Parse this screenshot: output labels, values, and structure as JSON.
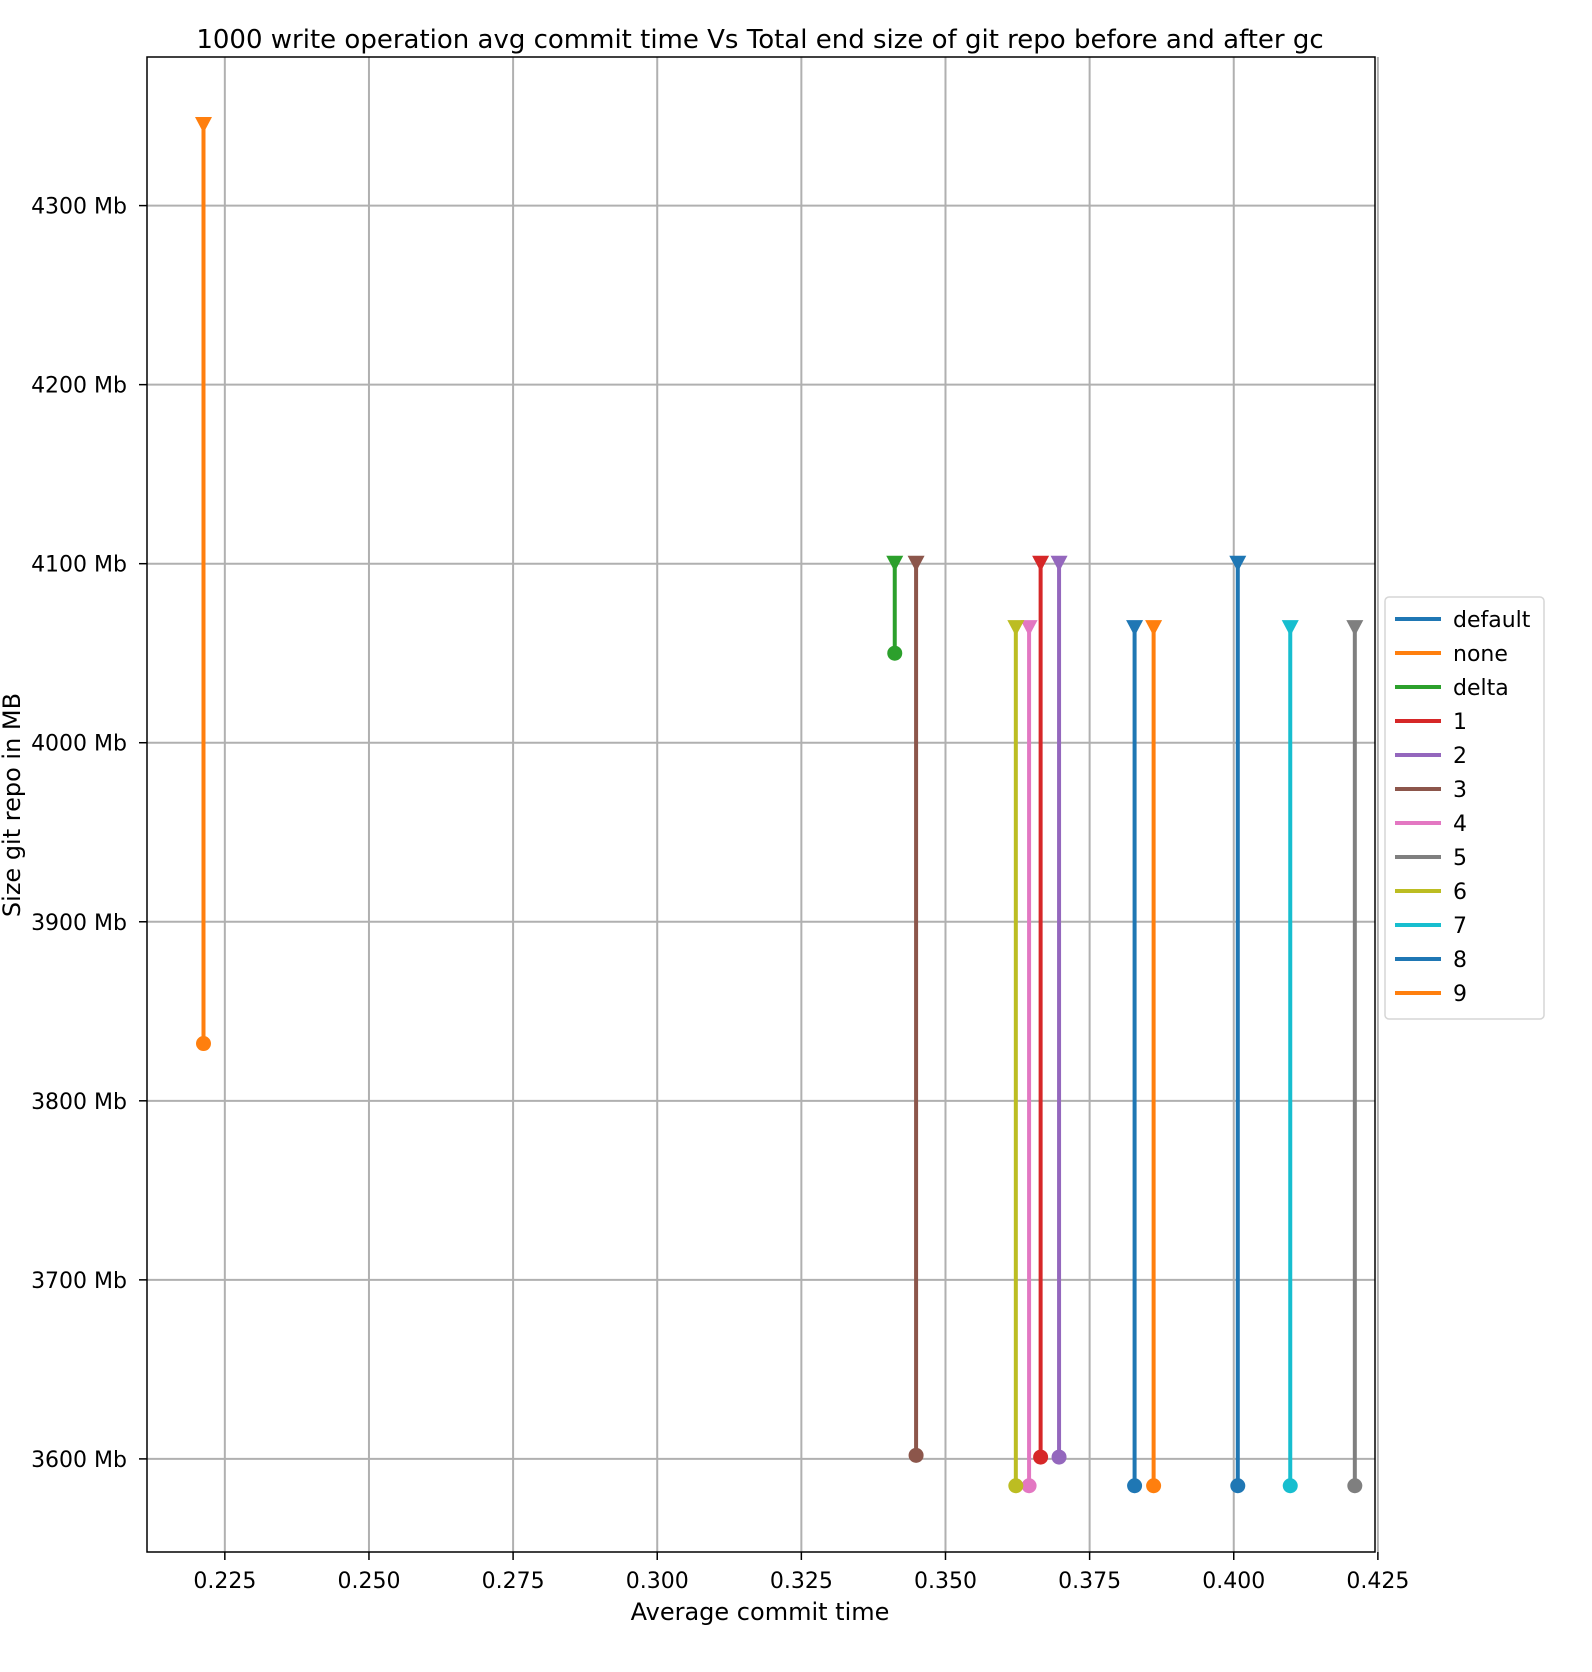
{
  "chart_data": {
    "type": "line",
    "title": "1000 write operation  avg commit time Vs Total end size of git repo before and after gc",
    "xlabel": "Average commit time",
    "ylabel": "Size git repo in MB",
    "xlim": [
      0.2115,
      0.4245
    ],
    "ylim": [
      3548,
      4383
    ],
    "xticks": [
      0.225,
      0.25,
      0.275,
      0.3,
      0.325,
      0.35,
      0.375,
      0.4,
      0.425
    ],
    "xtick_labels": [
      "0.225",
      "0.250",
      "0.275",
      "0.300",
      "0.325",
      "0.350",
      "0.375",
      "0.400",
      "0.425"
    ],
    "yticks": [
      3600,
      3700,
      3800,
      3900,
      4000,
      4100,
      4200,
      4300
    ],
    "ytick_labels": [
      "3600 Mb",
      "3700 Mb",
      "3800 Mb",
      "3900 Mb",
      "4000 Mb",
      "4100 Mb",
      "4200 Mb",
      "4300 Mb"
    ],
    "grid": true,
    "legend_position": "center-right-outside",
    "markers": {
      "before_gc": "triangle-down",
      "after_gc": "circle"
    },
    "series": [
      {
        "name": "default",
        "color": "#1f77b4",
        "x": 0.3828,
        "before_gc": 4064,
        "after_gc": 3585
      },
      {
        "name": "none",
        "color": "#ff7f0e",
        "x": 0.2213,
        "before_gc": 4345,
        "after_gc": 3832
      },
      {
        "name": "delta",
        "color": "#2ca02c",
        "x": 0.3412,
        "before_gc": 4100,
        "after_gc": 4050
      },
      {
        "name": "1",
        "color": "#d62728",
        "x": 0.3665,
        "before_gc": 4100,
        "after_gc": 3601
      },
      {
        "name": "2",
        "color": "#9467bd",
        "x": 0.3697,
        "before_gc": 4100,
        "after_gc": 3601
      },
      {
        "name": "3",
        "color": "#8c564b",
        "x": 0.3449,
        "before_gc": 4100,
        "after_gc": 3602
      },
      {
        "name": "4",
        "color": "#e377c2",
        "x": 0.3645,
        "before_gc": 4064,
        "after_gc": 3585
      },
      {
        "name": "5",
        "color": "#7f7f7f",
        "x": 0.421,
        "before_gc": 4064,
        "after_gc": 3585
      },
      {
        "name": "6",
        "color": "#bcbd22",
        "x": 0.3622,
        "before_gc": 4064,
        "after_gc": 3585
      },
      {
        "name": "7",
        "color": "#17becf",
        "x": 0.4098,
        "before_gc": 4064,
        "after_gc": 3585
      },
      {
        "name": "8",
        "color": "#1f77b4",
        "x": 0.4007,
        "before_gc": 4100,
        "after_gc": 3585
      },
      {
        "name": "9",
        "color": "#ff7f0e",
        "x": 0.3861,
        "before_gc": 4064,
        "after_gc": 3585
      }
    ]
  }
}
